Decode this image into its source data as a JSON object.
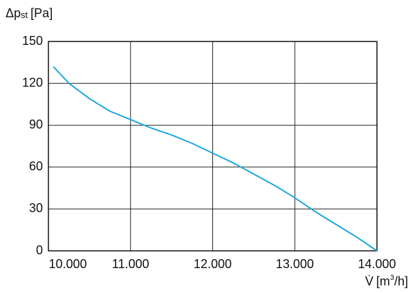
{
  "chart_data": {
    "type": "line",
    "y_label": {
      "symbol": "Δp",
      "subscript": "st",
      "unit": "[Pa]"
    },
    "x_label": {
      "symbol": "V̇",
      "unit_start": "[m",
      "superscript": "3",
      "unit_end": "/h]"
    },
    "x": [
      10060,
      10250,
      10500,
      10750,
      11000,
      11250,
      11500,
      11750,
      12000,
      12250,
      12500,
      12750,
      13000,
      13250,
      13500,
      13750,
      14000
    ],
    "values": [
      132,
      120,
      109,
      100,
      94,
      88,
      83,
      77,
      70,
      63,
      55,
      47,
      38,
      28,
      19,
      10,
      0
    ],
    "color": "#1ca6dc",
    "xlim": [
      10000,
      14000
    ],
    "xticks": [
      {
        "value": 10000,
        "label": "10.000"
      },
      {
        "value": 11000,
        "label": "11.000"
      },
      {
        "value": 12000,
        "label": "12.000"
      },
      {
        "value": 13000,
        "label": "13.000"
      },
      {
        "value": 14000,
        "label": "14.000"
      }
    ],
    "ylim": [
      0,
      150
    ],
    "yticks": [
      0,
      30,
      60,
      90,
      120,
      150
    ],
    "grid": true
  }
}
